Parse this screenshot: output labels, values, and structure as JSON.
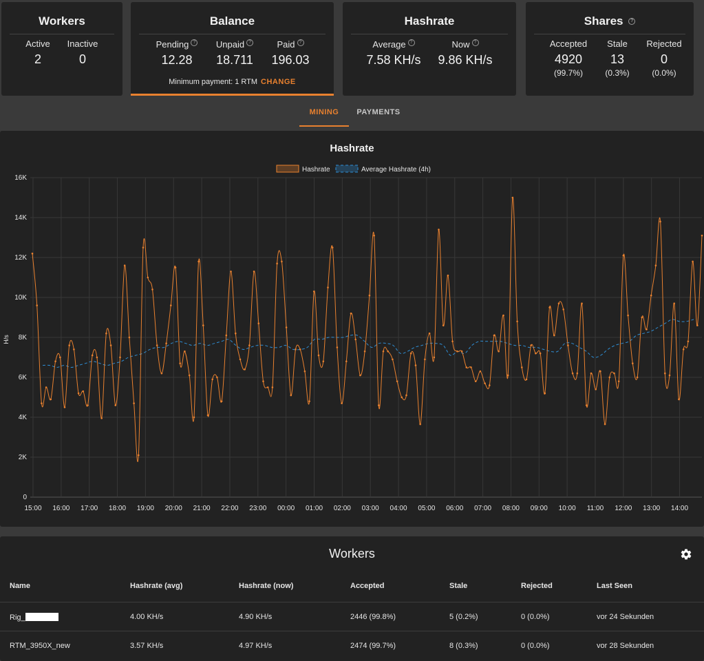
{
  "workers_card": {
    "title": "Workers",
    "active_label": "Active",
    "active_value": "2",
    "inactive_label": "Inactive",
    "inactive_value": "0"
  },
  "balance_card": {
    "title": "Balance",
    "pending_label": "Pending",
    "pending_value": "12.28",
    "unpaid_label": "Unpaid",
    "unpaid_value": "18.711",
    "paid_label": "Paid",
    "paid_value": "196.03",
    "min_payment": "Minimum payment: 1 RTM",
    "change_label": "CHANGE"
  },
  "hashrate_card": {
    "title": "Hashrate",
    "average_label": "Average",
    "average_value": "7.58 KH/s",
    "now_label": "Now",
    "now_value": "9.86 KH/s"
  },
  "shares_card": {
    "title": "Shares",
    "accepted_label": "Accepted",
    "accepted_value": "4920",
    "accepted_pct": "(99.7%)",
    "stale_label": "Stale",
    "stale_value": "13",
    "stale_pct": "(0.3%)",
    "rejected_label": "Rejected",
    "rejected_value": "0",
    "rejected_pct": "(0.0%)"
  },
  "tabs": {
    "mining": "MINING",
    "payments": "PAYMENTS"
  },
  "colors": {
    "accent": "#e9812f",
    "avg_line": "#2f8fd6",
    "panel": "#222222",
    "background": "#3a3a3a"
  },
  "chart_data": {
    "type": "line",
    "title": "Hashrate",
    "ylabel": "H/s",
    "xlabel": "",
    "ylim": [
      0,
      16000
    ],
    "y_ticks": [
      "0",
      "2K",
      "4K",
      "6K",
      "8K",
      "10K",
      "12K",
      "14K",
      "16K"
    ],
    "x_range": [
      "15:00",
      "14:50"
    ],
    "x_ticks": [
      "15:00",
      "16:00",
      "17:00",
      "18:00",
      "19:00",
      "20:00",
      "21:00",
      "22:00",
      "23:00",
      "00:00",
      "01:00",
      "02:00",
      "03:00",
      "04:00",
      "05:00",
      "06:00",
      "07:00",
      "08:00",
      "09:00",
      "10:00",
      "11:00",
      "12:00",
      "13:00",
      "14:00"
    ],
    "grid": true,
    "legend": "top-center",
    "series": [
      {
        "name": "Hashrate",
        "color": "#e9812f",
        "values": [
          12200,
          9600,
          4700,
          5500,
          4900,
          6800,
          7000,
          4500,
          7600,
          7400,
          5200,
          5300,
          4600,
          7100,
          7000,
          3950,
          8200,
          7600,
          4600,
          7000,
          11600,
          8000,
          4700,
          2100,
          12500,
          11000,
          10400,
          7600,
          6200,
          7700,
          9600,
          11500,
          6700,
          7300,
          6100,
          4000,
          11800,
          8600,
          4100,
          5900,
          6000,
          4800,
          8100,
          11300,
          8200,
          6900,
          6400,
          7600,
          11300,
          8700,
          5800,
          5500,
          5500,
          11700,
          11800,
          8500,
          5100,
          7400,
          7400,
          6300,
          4800,
          10300,
          7100,
          6800,
          10500,
          12500,
          7500,
          4700,
          6800,
          9200,
          7900,
          6100,
          7300,
          10100,
          13100,
          4600,
          7300,
          7300,
          6900,
          5800,
          5000,
          5100,
          7200,
          6600,
          3650,
          6900,
          8200,
          7000,
          13400,
          8600,
          11100,
          7800,
          7300,
          7300,
          6500,
          6500,
          5800,
          6300,
          5700,
          5600,
          8100,
          7300,
          9100,
          6100,
          15000,
          8800,
          6500,
          5900,
          7600,
          7200,
          7200,
          5200,
          9500,
          8100,
          9700,
          9400,
          7600,
          6200,
          6200,
          9700,
          4600,
          6200,
          5400,
          6300,
          3650,
          6000,
          6200,
          5800,
          12100,
          9100,
          6700,
          6000,
          9000,
          8400,
          10100,
          11600,
          13800,
          6200,
          6100,
          9700,
          4900,
          7400,
          7800,
          11800,
          8600,
          13100
        ]
      },
      {
        "name": "Average Hashrate (4h)",
        "color": "#2f8fd6",
        "values": [
          6600,
          6600,
          6500,
          6600,
          6500,
          6600,
          6700,
          6800,
          6700,
          6600,
          6700,
          6800,
          7000,
          7100,
          7200,
          7400,
          7500,
          7500,
          7700,
          7800,
          7700,
          7600,
          7700,
          7600,
          7700,
          7800,
          7900,
          7600,
          7400,
          7500,
          7600,
          7600,
          7500,
          7500,
          7600,
          7400,
          7400,
          7500,
          7900,
          7900,
          8000,
          8000,
          8000,
          8100,
          8100,
          7800,
          7500,
          7700,
          7700,
          7600,
          7200,
          7300,
          7500,
          7600,
          7700,
          7700,
          7600,
          7100,
          7300,
          7200,
          7600,
          7800,
          7800,
          7800,
          7800,
          7700,
          7600,
          7600,
          7500,
          7500,
          7400,
          7300,
          7300,
          7700,
          7700,
          7500,
          7300,
          7000,
          7100,
          7400,
          7600,
          7700,
          7800,
          8100,
          8200,
          8300,
          8500,
          8700,
          8900,
          8800,
          8800,
          8900
        ]
      }
    ]
  },
  "workers_table": {
    "title": "Workers",
    "columns": [
      "Name",
      "Hashrate (avg)",
      "Hashrate (now)",
      "Accepted",
      "Stale",
      "Rejected",
      "Last Seen"
    ],
    "rows": [
      {
        "name": "Rig_",
        "avg": "4.00 KH/s",
        "now": "4.90 KH/s",
        "accepted": "2446 (99.8%)",
        "stale": "5 (0.2%)",
        "rejected": "0 (0.0%)",
        "last_seen": "vor 24 Sekunden"
      },
      {
        "name": "RTM_3950X_new",
        "avg": "3.57 KH/s",
        "now": "4.97 KH/s",
        "accepted": "2474 (99.7%)",
        "stale": "8 (0.3%)",
        "rejected": "0 (0.0%)",
        "last_seen": "vor 28 Sekunden"
      }
    ]
  }
}
